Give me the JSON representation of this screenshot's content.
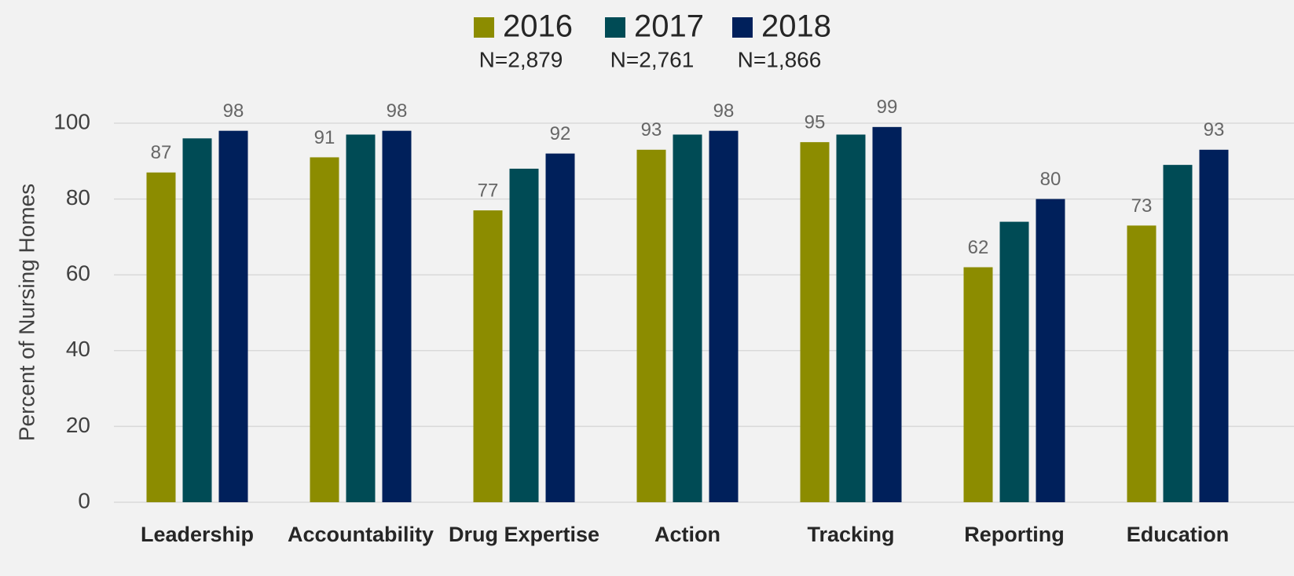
{
  "chart_data": {
    "type": "bar",
    "y_label": "Percent of Nursing Homes",
    "categories": [
      "Leadership",
      "Accountability",
      "Drug Expertise",
      "Action",
      "Tracking",
      "Reporting",
      "Education"
    ],
    "series": [
      {
        "name": "2016",
        "n_label": "N=2,879",
        "color": "#8c8c00",
        "show_labels": true,
        "values": [
          87,
          91,
          77,
          93,
          95,
          62,
          73
        ]
      },
      {
        "name": "2017",
        "n_label": "N=2,761",
        "color": "#004b55",
        "show_labels": false,
        "values": [
          96,
          97,
          88,
          97,
          97,
          74,
          89
        ]
      },
      {
        "name": "2018",
        "n_label": "N=1,866",
        "color": "#00205b",
        "show_labels": true,
        "values": [
          98,
          98,
          92,
          98,
          99,
          80,
          93
        ]
      }
    ],
    "ylim": [
      0,
      100
    ],
    "yticks": [
      0,
      20,
      40,
      60,
      80,
      100
    ],
    "grid": true,
    "legend": "top"
  }
}
